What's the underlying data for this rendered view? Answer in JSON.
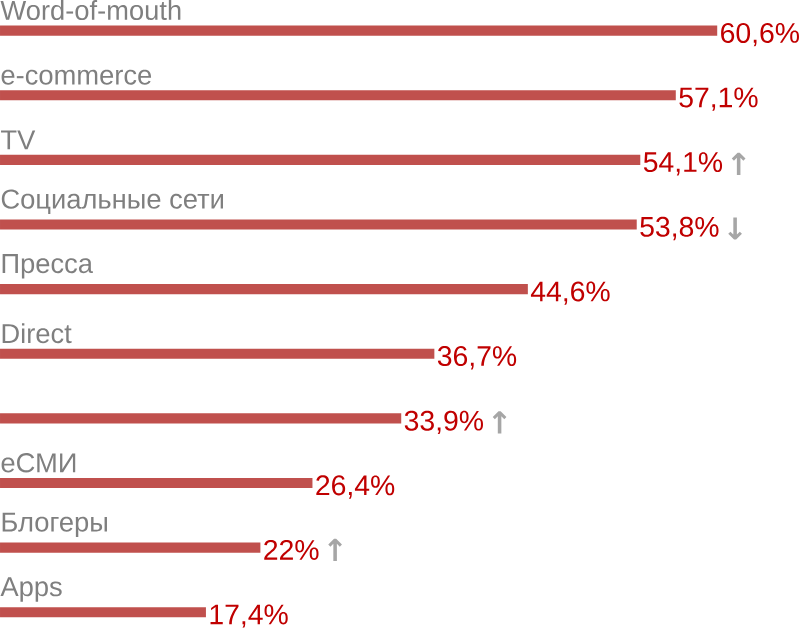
{
  "chart_data": {
    "type": "bar",
    "orientation": "horizontal",
    "color": "#c0504d",
    "categories": [
      "Word-of-mouth",
      "e-commerce",
      "TV",
      "Социальные сети",
      "Пресса",
      "Direct",
      null,
      "eСМИ",
      "Блогеры",
      "Apps"
    ],
    "values": [
      60.6,
      57.1,
      54.1,
      53.8,
      44.6,
      36.7,
      33.9,
      26.4,
      22,
      17.4
    ],
    "value_labels": [
      "60,6%",
      "57,1%",
      "54,1%",
      "53,8%",
      "44,6%",
      "36,7%",
      "33,9%",
      "26,4%",
      "22%",
      "17,4%"
    ],
    "annotations": [
      "↑",
      "↓",
      "↑",
      "↑"
    ]
  }
}
